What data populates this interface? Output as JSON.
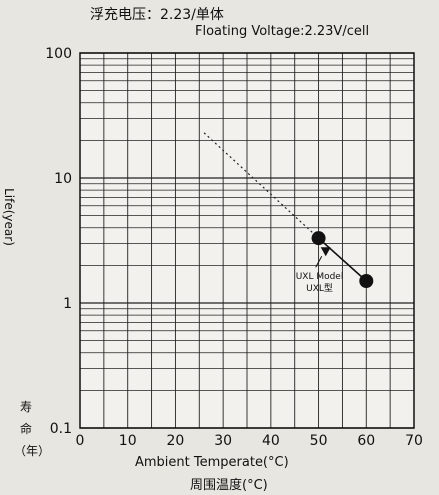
{
  "header": {
    "line1": "浮充电压：2.23/单体",
    "line2": "Floating Voltage:2.23V/cell"
  },
  "labels": {
    "x_en": "Ambient Temperate(°C)",
    "x_cn": "周围温度(°C)",
    "y_en": "Life(year)",
    "y_cn1": "寿",
    "y_cn2": "命",
    "y_cn3": "（年）",
    "annotation_line1": "UXL Model",
    "annotation_line2": "UXL型"
  },
  "chart_data": {
    "type": "line",
    "title": "",
    "xlabel": "Ambient Temperate(°C)",
    "ylabel": "Life(year)",
    "xlim": [
      0,
      70
    ],
    "ylim": [
      0.1,
      100
    ],
    "yscale": "log",
    "x_ticks": [
      0,
      10,
      20,
      30,
      40,
      50,
      60,
      70
    ],
    "y_ticks": [
      0.1,
      1,
      10,
      100
    ],
    "y_tick_labels": [
      "0.1",
      "1",
      "10",
      "100"
    ],
    "grid": true,
    "series": [
      {
        "name": "UXL Model",
        "style": "solid",
        "points": [
          [
            50,
            3.3
          ],
          [
            60,
            1.5
          ]
        ]
      },
      {
        "name": "",
        "style": "dotted",
        "points": [
          [
            26,
            23
          ],
          [
            50,
            3.3
          ]
        ]
      }
    ]
  }
}
